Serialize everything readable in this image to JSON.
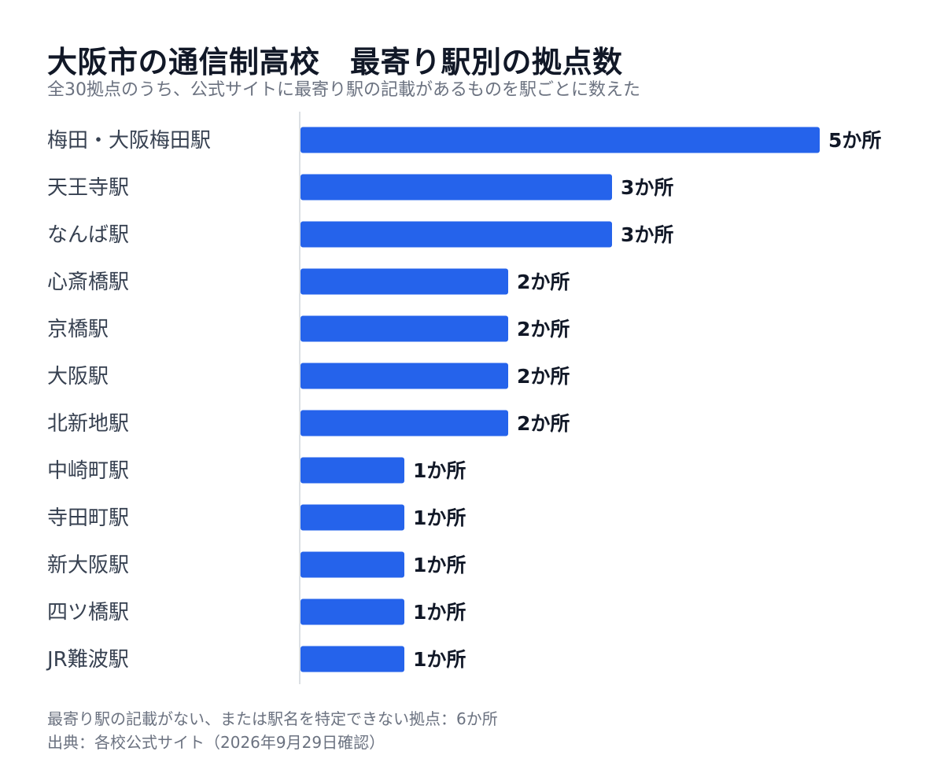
{
  "title": "大阪市の通信制高校　最寄り駅別の拠点数",
  "subtitle": "全30拠点のうち、公式サイトに最寄り駅の記載があるものを駅ごとに数えた",
  "colors": {
    "bar": "#2563eb",
    "axis": "#d1d5db",
    "label": "#374151",
    "value": "#111827"
  },
  "chart_data": {
    "type": "bar",
    "orientation": "horizontal",
    "categories": [
      "梅田・大阪梅田駅",
      "天王寺駅",
      "なんば駅",
      "心斎橋駅",
      "京橋駅",
      "大阪駅",
      "北新地駅",
      "中崎町駅",
      "寺田町駅",
      "新大阪駅",
      "四ツ橋駅",
      "JR難波駅"
    ],
    "values": [
      5,
      3,
      3,
      2,
      2,
      2,
      2,
      1,
      1,
      1,
      1,
      1
    ],
    "value_labels": [
      "5か所",
      "3か所",
      "3か所",
      "2か所",
      "2か所",
      "2か所",
      "2か所",
      "1か所",
      "1か所",
      "1か所",
      "1か所",
      "1か所"
    ],
    "xlim": [
      0,
      5
    ],
    "grid": false,
    "legend": "none"
  },
  "footnotes": {
    "note": "最寄り駅の記載がない、または駅名を特定できない拠点：6か所",
    "source": "出典：各校公式サイト（2026年9月29日確認）"
  }
}
